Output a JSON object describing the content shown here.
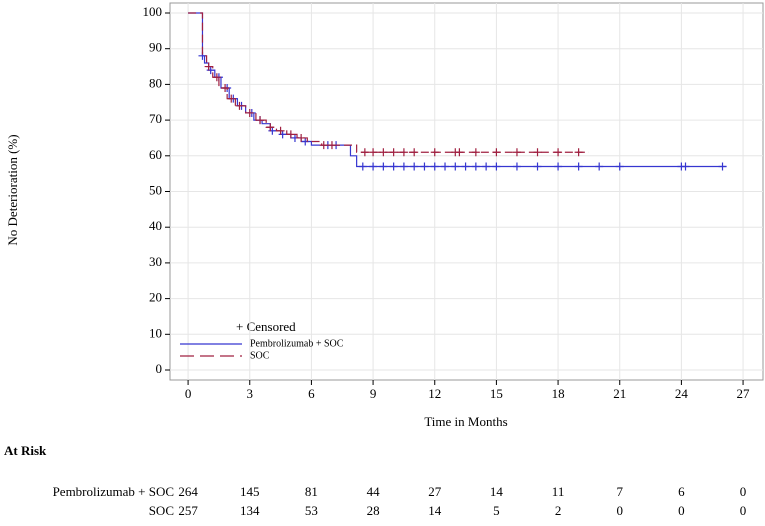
{
  "chart_data": {
    "type": "km",
    "y_label": "No Deterioration (%)",
    "x_label": "Time in Months",
    "xlim": [
      -0.88,
      27.97
    ],
    "ylim": [
      -2.8,
      102.8
    ],
    "xticks": [
      0,
      3,
      6,
      9,
      12,
      15,
      18,
      21,
      24,
      27
    ],
    "yticks": [
      0,
      10,
      20,
      30,
      40,
      50,
      60,
      70,
      80,
      90,
      100
    ],
    "grid": true,
    "legend_censored": "+ Censored",
    "series": [
      {
        "name": "Pembrolizumab + SOC",
        "color": "#3636d0",
        "dash": false,
        "x": [
          0,
          0.65,
          0.7,
          0.8,
          1,
          1.3,
          1.6,
          2,
          2.4,
          2.8,
          3.2,
          3.6,
          4,
          4.5,
          5,
          5.5,
          6,
          7.6,
          7.9,
          8.2,
          26.2
        ],
        "values": [
          100,
          100,
          88,
          86,
          84,
          82,
          79,
          76,
          74,
          72,
          70,
          69,
          67,
          66,
          65,
          64,
          63,
          63,
          60,
          57,
          57
        ],
        "censored": {
          "x": [
            0.7,
            1.1,
            1.5,
            1.9,
            2.2,
            2.6,
            3.1,
            3.5,
            4.1,
            4.6,
            5.2,
            5.7,
            6.8,
            7.2,
            8.5,
            9,
            9.5,
            10,
            10.5,
            11,
            11.5,
            12,
            12.5,
            13,
            13.5,
            14,
            14.5,
            15,
            16,
            17,
            18,
            19,
            20,
            21,
            24,
            24.2,
            26
          ],
          "values": [
            88,
            84,
            82,
            79,
            76,
            74,
            72,
            70,
            67,
            66,
            65,
            64,
            63,
            63,
            57,
            57,
            57,
            57,
            57,
            57,
            57,
            57,
            57,
            57,
            57,
            57,
            57,
            57,
            57,
            57,
            57,
            57,
            57,
            57,
            57,
            57,
            57
          ]
        }
      },
      {
        "name": "SOC",
        "color": "#a02040",
        "dash": true,
        "x": [
          0,
          0.65,
          0.7,
          0.9,
          1.2,
          1.5,
          1.9,
          2.3,
          2.8,
          3.3,
          3.8,
          4.3,
          4.8,
          5.3,
          5.8,
          6.5,
          7.5,
          8.2,
          19.5
        ],
        "values": [
          100,
          100,
          88,
          85,
          82,
          79,
          76,
          74,
          72,
          70,
          68,
          67,
          66,
          65,
          64,
          63,
          63,
          61,
          61
        ],
        "censored": {
          "x": [
            1.0,
            1.4,
            1.8,
            2.1,
            2.5,
            3,
            3.5,
            4,
            4.5,
            5,
            5.5,
            6.6,
            7,
            8.6,
            9,
            9.5,
            10,
            10.5,
            11,
            12,
            13,
            13.2,
            14,
            15,
            16,
            17,
            18,
            19
          ],
          "values": [
            85,
            82,
            79,
            76,
            74,
            72,
            70,
            68,
            67,
            66,
            65,
            63,
            63,
            61,
            61,
            61,
            61,
            61,
            61,
            61,
            61,
            61,
            61,
            61,
            61,
            61,
            61,
            61
          ]
        }
      }
    ],
    "at_risk": {
      "title": "At Risk",
      "rows": [
        {
          "name": "Pembrolizumab + SOC",
          "values": [
            264,
            145,
            81,
            44,
            27,
            14,
            11,
            7,
            6,
            0
          ]
        },
        {
          "name": "SOC",
          "values": [
            257,
            134,
            53,
            28,
            14,
            5,
            2,
            0,
            0,
            0
          ]
        }
      ]
    }
  }
}
